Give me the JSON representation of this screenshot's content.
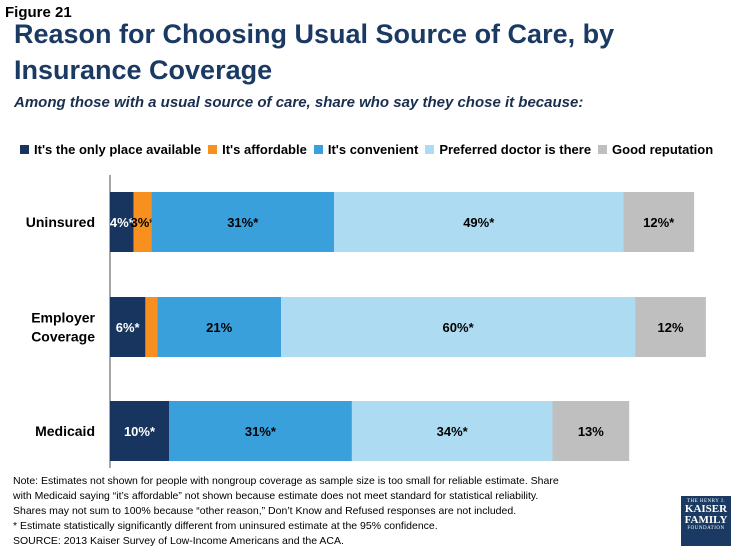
{
  "figure_label": "Figure 21",
  "chart_data": {
    "type": "bar",
    "orientation": "horizontal-stacked",
    "title": "Reason for Choosing Usual Source of Care, by Insurance Coverage",
    "subtitle": "Among those with a usual source of care, share who say they chose it because:",
    "categories": [
      "Uninsured",
      "Employer\nCoverage",
      "Medicaid"
    ],
    "series": [
      {
        "name": "It's the only place available",
        "color": "#17355e",
        "values": [
          4,
          6,
          10
        ],
        "labels": [
          "4%*",
          "6%*",
          "10%*"
        ]
      },
      {
        "name": "It's affordable",
        "color": "#f7901e",
        "values": [
          3,
          2,
          null
        ],
        "labels": [
          "3%*",
          "",
          ""
        ]
      },
      {
        "name": "It's convenient",
        "color": "#3aa0dc",
        "values": [
          31,
          21,
          31
        ],
        "labels": [
          "31%*",
          "21%",
          "31%*"
        ]
      },
      {
        "name": "Preferred doctor is there",
        "color": "#addcf2",
        "values": [
          49,
          60,
          34
        ],
        "labels": [
          "49%*",
          "60%*",
          "34%*"
        ]
      },
      {
        "name": "Good reputation",
        "color": "#bfbfbf",
        "values": [
          12,
          12,
          13
        ],
        "labels": [
          "12%*",
          "12%",
          "13%"
        ]
      }
    ],
    "xlabel": "",
    "ylabel": "",
    "xlim": [
      0,
      100
    ]
  },
  "notes": [
    "Note: Estimates not shown for people with nongroup coverage as sample size is too small for reliable estimate. Share with Medicaid saying “it’s affordable” not shown because estimate does not meet standard for statistical reliability. Shares may not sum to 100% because “other reason,” Don’t Know and Refused responses are not included.",
    "* Estimate statistically significantly different from uninsured estimate  at the 95% confidence.",
    "SOURCE: 2013 Kaiser Survey of Low-Income Americans and the ACA."
  ],
  "logo": {
    "line1": "THE HENRY J.",
    "line2": "KAISER",
    "line3": "FAMILY",
    "line4": "FOUNDATION"
  }
}
